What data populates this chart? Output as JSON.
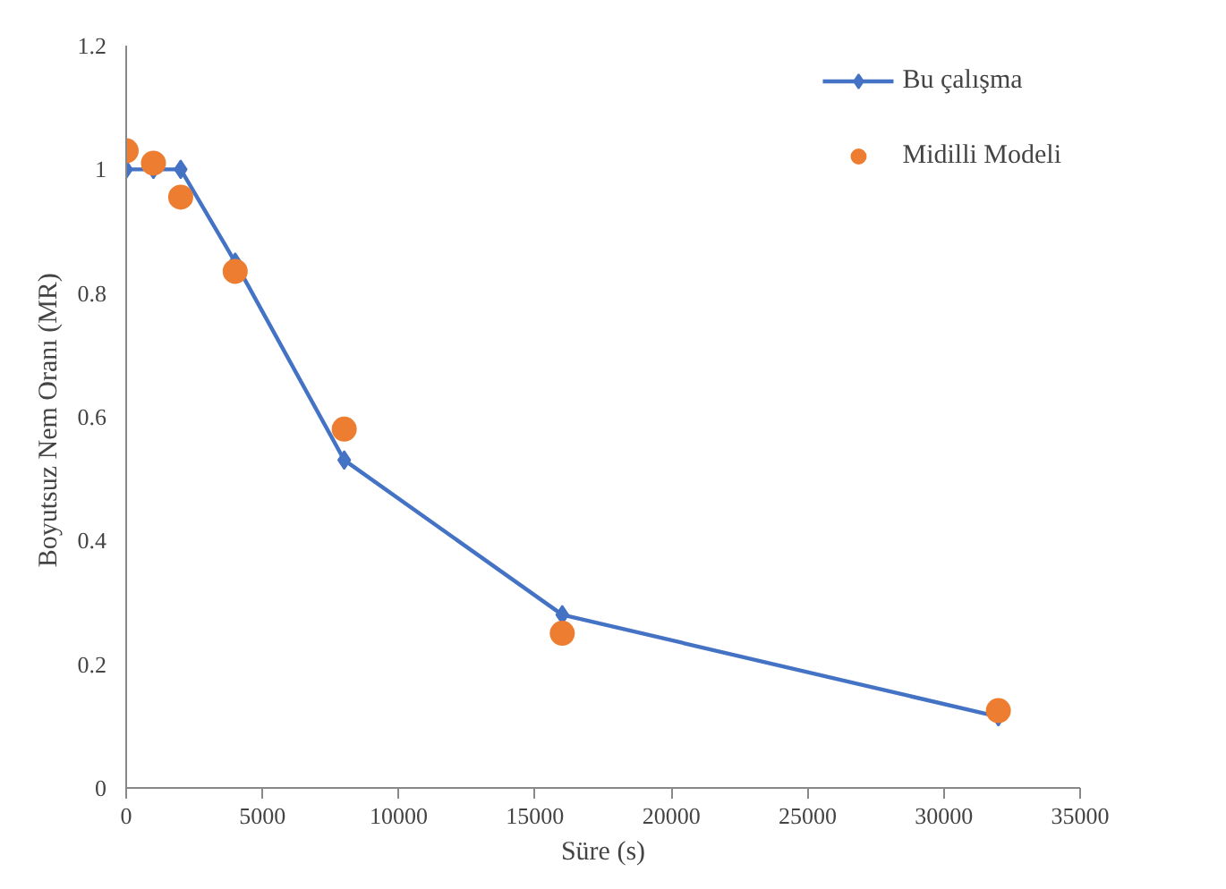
{
  "chart_data": {
    "type": "line",
    "xlabel": "Süre (s)",
    "ylabel": "Boyutsuz  Nem Oranı (MR)",
    "x": [
      0,
      1000,
      2000,
      4000,
      8000,
      16000,
      32000
    ],
    "series": [
      {
        "name": "Bu çalışma",
        "color": "#4472c4",
        "marker": "diamond",
        "values": [
          1.0,
          1.0,
          1.0,
          0.85,
          0.53,
          0.28,
          0.115
        ]
      },
      {
        "name": "Midilli Modeli",
        "type": "scatter",
        "color": "#ed7d31",
        "marker": "circle",
        "values": [
          1.03,
          1.01,
          0.955,
          0.835,
          0.58,
          0.25,
          0.125
        ]
      }
    ],
    "xlim": [
      0,
      35000
    ],
    "xticks": [
      0,
      5000,
      10000,
      15000,
      20000,
      25000,
      30000,
      35000
    ],
    "ylim": [
      0,
      1.2
    ],
    "yticks": [
      0,
      0.2,
      0.4,
      0.6,
      0.8,
      1,
      1.2
    ],
    "grid": false,
    "legend": "top right"
  }
}
